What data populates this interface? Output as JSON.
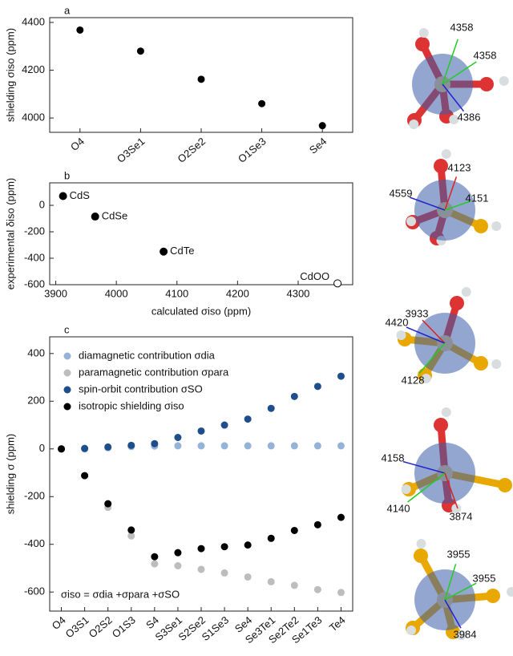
{
  "chart_data": [
    {
      "type": "dot",
      "panel": "a",
      "y_label": "shielding σiso (ppm)",
      "categories": [
        "O4",
        "O3Se1",
        "O2Se2",
        "O1Se3",
        "Se4"
      ],
      "values": [
        4368,
        4280,
        4162,
        4060,
        3968
      ],
      "color": "#000000",
      "ylim": [
        3940,
        4420
      ],
      "yticks": [
        4000,
        4200,
        4400
      ]
    },
    {
      "type": "scatter",
      "panel": "b",
      "x_label": "calculated σiso (ppm)",
      "y_label": "experimental δiso (ppm)",
      "x": [
        3912,
        3965,
        4078,
        4365
      ],
      "values": [
        70,
        -85,
        -350,
        -590
      ],
      "point_labels": [
        "CdS",
        "CdSe",
        "CdTe",
        "CdOO"
      ],
      "markers": [
        "filled",
        "filled",
        "filled",
        "open"
      ],
      "color": "#000000",
      "xlim": [
        3890,
        4390
      ],
      "xticks": [
        3900,
        4000,
        4100,
        4200,
        4300
      ],
      "ylim": [
        -600,
        170
      ],
      "yticks": [
        0,
        -200,
        -400,
        -600
      ]
    },
    {
      "type": "dot",
      "panel": "c",
      "y_label": "shielding σ (ppm)",
      "annotation": "σiso = σdia +σpara +σSO",
      "categories": [
        "O4",
        "O3S1",
        "O2S2",
        "O1S3",
        "S4",
        "S3Se1",
        "S2Se2",
        "S1Se3",
        "Se4",
        "Se3Te1",
        "Se2Te2",
        "Se1Te3",
        "Te4"
      ],
      "series": [
        {
          "name": "diamagnetic contribution σdia",
          "color": "#95b3d7",
          "values": [
            0,
            0,
            5,
            10,
            12,
            13,
            13,
            13,
            13,
            13,
            13,
            13,
            13
          ]
        },
        {
          "name": "paramagnetic contribution σpara",
          "color": "#bdbdbd",
          "values": [
            0,
            -112,
            -245,
            -365,
            -482,
            -490,
            -505,
            -520,
            -537,
            -557,
            -572,
            -590,
            -602
          ]
        },
        {
          "name": "spin-orbit contribution σSO",
          "color": "#1f4e8c",
          "values": [
            0,
            2,
            8,
            15,
            22,
            48,
            75,
            100,
            125,
            170,
            220,
            262,
            305
          ]
        },
        {
          "name": "isotropic shielding σiso",
          "color": "#000000",
          "values": [
            0,
            -112,
            -230,
            -340,
            -452,
            -435,
            -418,
            -410,
            -403,
            -375,
            -342,
            -318,
            -287
          ]
        }
      ],
      "ylim": [
        -680,
        470
      ],
      "yticks": [
        -600,
        -400,
        -200,
        0,
        200,
        400
      ]
    }
  ],
  "structures": [
    {
      "labels": [
        {
          "text": "4358",
          "color": "#22cc22"
        },
        {
          "text": "4358",
          "color": "#22cc22"
        },
        {
          "text": "4386",
          "color": "#2222cc"
        }
      ]
    },
    {
      "labels": [
        {
          "text": "4123",
          "color": "#dd2222"
        },
        {
          "text": "4559",
          "color": "#2222cc"
        },
        {
          "text": "4151",
          "color": "#22cc22"
        }
      ]
    },
    {
      "labels": [
        {
          "text": "3933",
          "color": "#dd2222"
        },
        {
          "text": "4420",
          "color": "#2222cc"
        },
        {
          "text": "4128",
          "color": "#22cc22"
        }
      ]
    },
    {
      "labels": [
        {
          "text": "4158",
          "color": "#2222cc"
        },
        {
          "text": "4140",
          "color": "#22cc22"
        },
        {
          "text": "3874",
          "color": "#dd2222"
        }
      ]
    },
    {
      "labels": [
        {
          "text": "3955",
          "color": "#22cc22"
        },
        {
          "text": "3955",
          "color": "#22cc22"
        },
        {
          "text": "3984",
          "color": "#2222cc"
        }
      ]
    }
  ]
}
